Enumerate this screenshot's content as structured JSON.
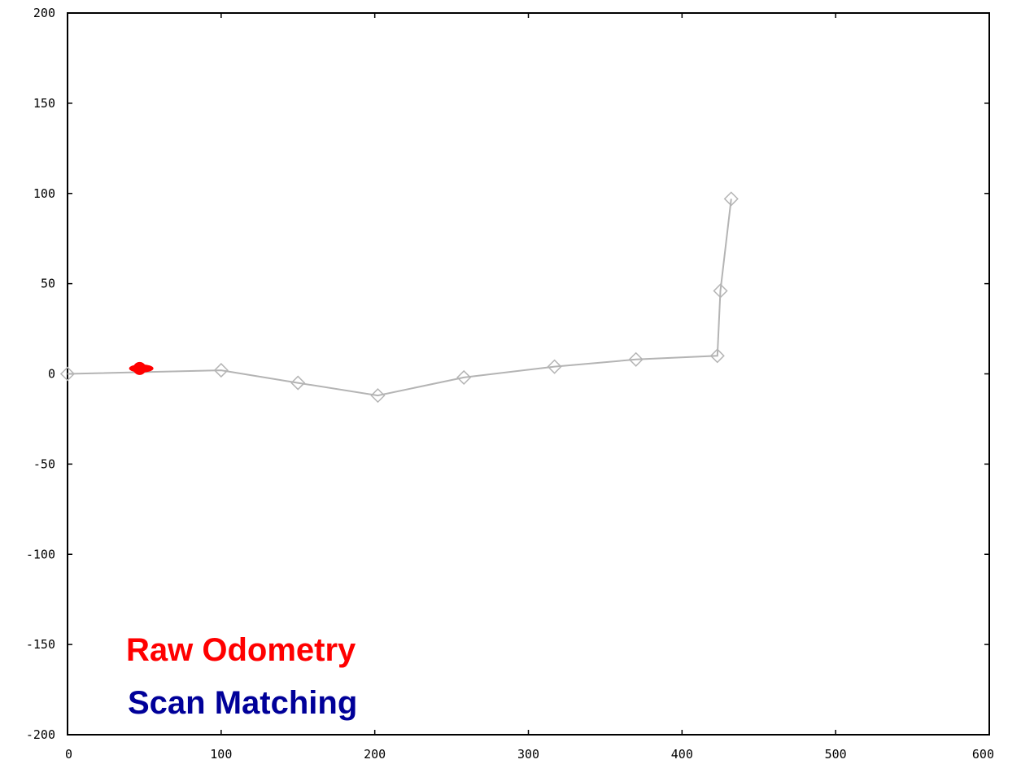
{
  "chart_data": {
    "type": "line",
    "xlim": [
      0,
      600
    ],
    "ylim": [
      -200,
      200
    ],
    "x_ticks": [
      0,
      100,
      200,
      300,
      400,
      500,
      600
    ],
    "y_ticks": [
      200,
      150,
      100,
      50,
      0,
      -50,
      -100,
      -150,
      -200
    ],
    "x_tick_labels": [
      "0",
      "100",
      "200",
      "300",
      "400",
      "500",
      "600"
    ],
    "y_tick_labels": [
      "200",
      "150",
      "100",
      "50",
      "0",
      "-50",
      "-100",
      "-150",
      "-200"
    ],
    "grid": false,
    "legend": {
      "placement": "bottom-left",
      "entries": [
        {
          "label": "Raw Odometry",
          "color": "#ff0000"
        },
        {
          "label": "Scan Matching",
          "color": "#000099"
        }
      ]
    },
    "series": [
      {
        "color": "#b4b4b4",
        "marker": "diamond",
        "x": [
          0,
          100,
          150,
          202,
          258,
          317,
          370,
          423,
          425,
          432
        ],
        "y": [
          0,
          2,
          -5,
          -12,
          -2,
          4,
          8,
          10,
          46,
          97
        ]
      },
      {
        "color": "#ff0000",
        "marker": "cluster",
        "x": [
          48
        ],
        "y": [
          3
        ]
      }
    ]
  }
}
